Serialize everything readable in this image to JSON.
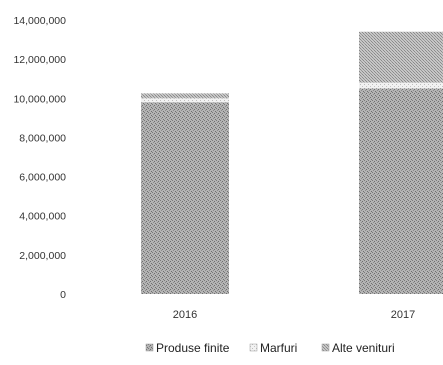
{
  "chart_data": {
    "type": "bar",
    "stacked": true,
    "categories": [
      "2016",
      "2017"
    ],
    "series": [
      {
        "name": "Produse finite",
        "values": [
          9800000,
          10500000
        ],
        "color": "#9a9a9a",
        "pattern": "produse"
      },
      {
        "name": "Marfuri",
        "values": [
          200000,
          300000
        ],
        "color": "#e6e6e6",
        "pattern": "marfuri"
      },
      {
        "name": "Alte venituri",
        "values": [
          250000,
          2600000
        ],
        "color": "#b0b0b0",
        "pattern": "alte"
      }
    ],
    "yticks": [
      "0",
      "2,000,000",
      "4,000,000",
      "6,000,000",
      "8,000,000",
      "10,000,000",
      "12,000,000",
      "14,000,000"
    ],
    "ylim": [
      0,
      14000000
    ],
    "grid": false,
    "legend": "bottom"
  }
}
